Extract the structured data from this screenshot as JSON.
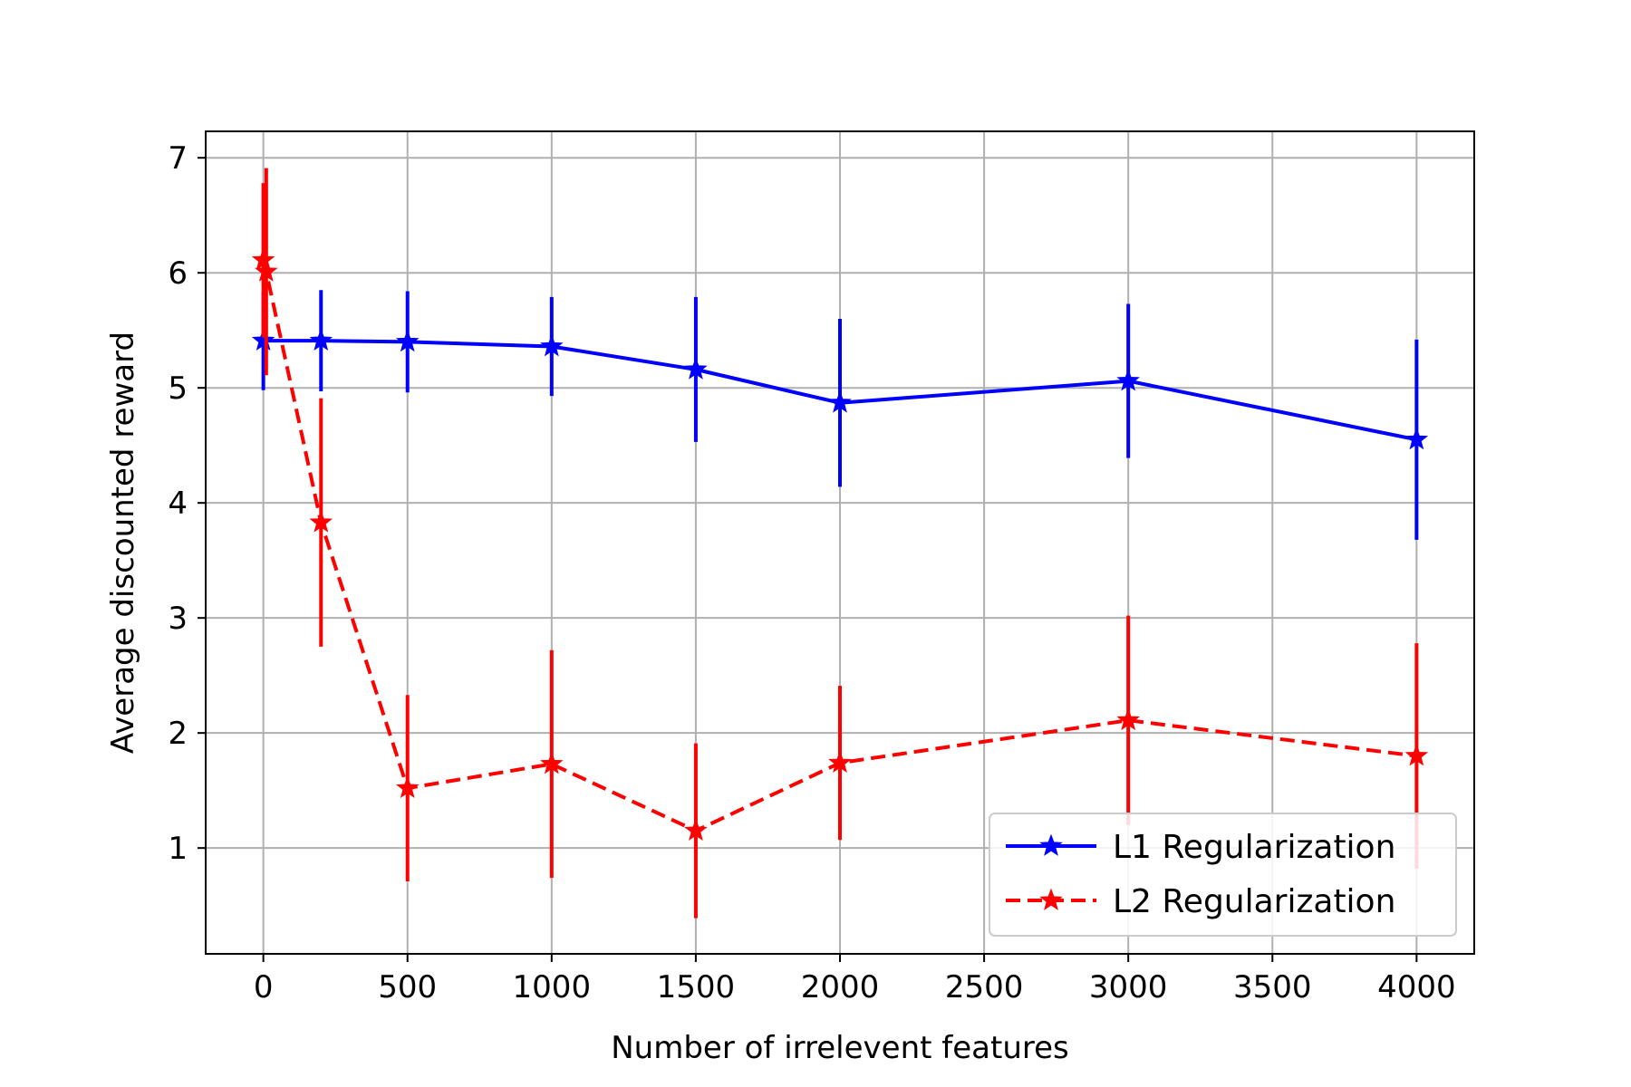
{
  "chart_data": {
    "type": "line",
    "title": "",
    "xlabel": "Number of irrelevent features",
    "ylabel": "Average discounted reward",
    "xlim": [
      -200,
      4200
    ],
    "ylim": [
      0.08,
      7.23
    ],
    "xticks": [
      0,
      500,
      1000,
      1500,
      2000,
      2500,
      3000,
      3500,
      4000
    ],
    "yticks": [
      1,
      2,
      3,
      4,
      5,
      6,
      7
    ],
    "grid": true,
    "legend_position": "lower-right",
    "series": [
      {
        "name": "L1 Regularization",
        "color": "#0000ff",
        "line_style": "solid",
        "marker": "star",
        "x": [
          0,
          200,
          500,
          1000,
          1500,
          2000,
          3000,
          4000
        ],
        "y": [
          5.41,
          5.41,
          5.4,
          5.36,
          5.16,
          4.87,
          5.06,
          4.55
        ],
        "err": [
          0.43,
          0.44,
          0.44,
          0.43,
          0.63,
          0.73,
          0.67,
          0.87
        ]
      },
      {
        "name": "L2 Regularization",
        "color": "#ff0000",
        "line_style": "dashed",
        "marker": "star",
        "x": [
          0,
          10,
          200,
          500,
          1000,
          1500,
          2000,
          3000,
          4000
        ],
        "y": [
          6.11,
          6.01,
          3.83,
          1.52,
          1.73,
          1.15,
          1.74,
          2.11,
          1.8
        ],
        "err": [
          0.67,
          0.9,
          1.08,
          0.81,
          0.99,
          0.76,
          0.67,
          0.91,
          0.98
        ]
      }
    ]
  }
}
